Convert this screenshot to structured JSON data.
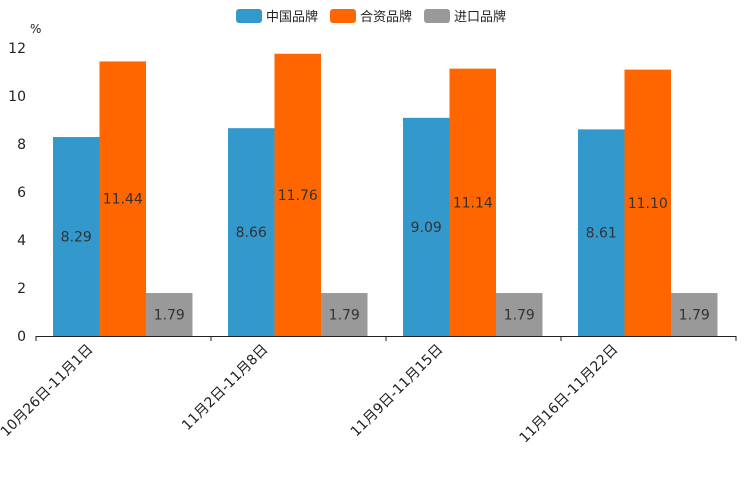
{
  "chart_data": {
    "type": "bar",
    "title": "",
    "xlabel": "",
    "ylabel": "%",
    "ylim": [
      0,
      12
    ],
    "yticks": [
      0,
      2,
      4,
      6,
      8,
      10,
      12
    ],
    "grid": false,
    "legend_position": "top-center",
    "categories": [
      "10月26日-11月1日",
      "11月2日-11月8日",
      "11月9日-11月15日",
      "11月16日-11月22日"
    ],
    "series": [
      {
        "name": "中国品牌",
        "color": "#3399cc",
        "label_color": "#333333",
        "values": [
          8.29,
          8.66,
          9.09,
          8.61
        ],
        "labels": [
          "8.29",
          "8.66",
          "9.09",
          "8.61"
        ]
      },
      {
        "name": "合资品牌",
        "color": "#ff6600",
        "label_color": "#333333",
        "values": [
          11.44,
          11.76,
          11.14,
          11.1
        ],
        "labels": [
          "11.44",
          "11.76",
          "11.14",
          "11.10"
        ]
      },
      {
        "name": "进口品牌",
        "color": "#999999",
        "label_color": "#333333",
        "values": [
          1.79,
          1.79,
          1.79,
          1.79
        ],
        "labels": [
          "1.79",
          "1.79",
          "1.79",
          "1.79"
        ]
      }
    ]
  }
}
